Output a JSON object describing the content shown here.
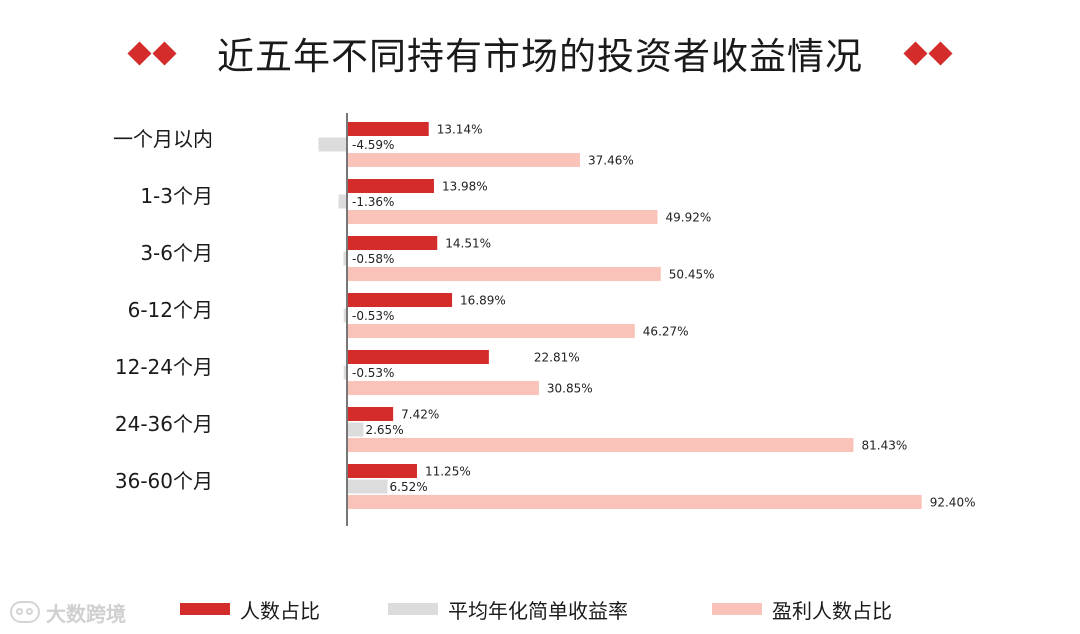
{
  "header": {
    "title": "近五年不同持有市场的投资者收益情况",
    "accent_color": "#d42b2b"
  },
  "watermark": {
    "text": "大数跨境",
    "icon": "brand-logo-icon"
  },
  "chart_data": {
    "type": "bar",
    "orientation": "horizontal",
    "title": "近五年不同持有市场的投资者收益情况",
    "xlabel": "",
    "ylabel": "",
    "xlim": [
      -10,
      100
    ],
    "grid": false,
    "legend_position": "bottom",
    "categories": [
      "一个月以内",
      "1-3个月",
      "3-6个月",
      "6-12个月",
      "12-24个月",
      "24-36个月",
      "36-60个月"
    ],
    "series": [
      {
        "name": "人数占比",
        "color": "#d42b2b",
        "values": [
          13.14,
          13.98,
          14.51,
          16.89,
          22.81,
          7.42,
          11.25
        ],
        "labels": [
          "13.14%",
          "13.98%",
          "14.51%",
          "16.89%",
          "22.81%",
          "7.42%",
          "11.25%"
        ]
      },
      {
        "name": "平均年化简单收益率",
        "color": "#dcdcdc",
        "values": [
          -4.59,
          -1.36,
          -0.58,
          -0.53,
          -0.53,
          2.65,
          6.52
        ],
        "labels": [
          "-4.59%",
          "-1.36%",
          "-0.58%",
          "-0.53%",
          "-0.53%",
          "2.65%",
          "6.52%"
        ]
      },
      {
        "name": "盈利人数占比",
        "color": "#f9c3b9",
        "values": [
          37.46,
          49.92,
          50.45,
          46.27,
          30.85,
          81.43,
          92.4
        ],
        "labels": [
          "37.46%",
          "49.92%",
          "50.45%",
          "46.27%",
          "30.85%",
          "81.43%",
          "92.40%"
        ]
      }
    ]
  }
}
